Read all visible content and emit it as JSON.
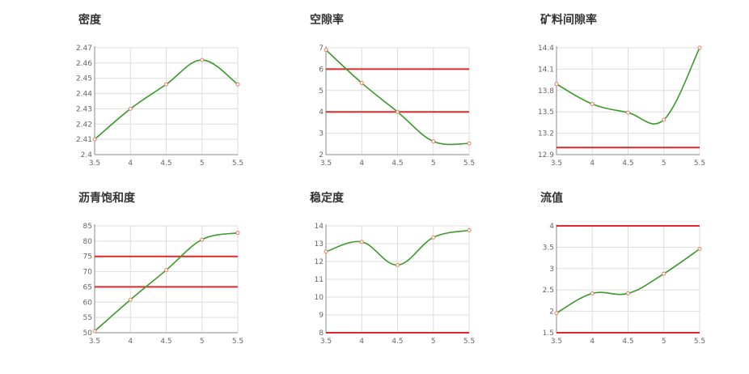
{
  "colors": {
    "curve": "#3a9a2a",
    "limit": "#e0292b",
    "grid": "#dddddd",
    "axis": "#888888",
    "marker_stroke": "#e08060"
  },
  "chart_data": [
    {
      "type": "line",
      "title": "密度",
      "x": [
        3.5,
        4,
        4.5,
        5,
        5.5
      ],
      "series": [
        {
          "values": [
            2.41,
            2.43,
            2.446,
            2.462,
            2.446
          ]
        }
      ],
      "xticks": [
        "3.5",
        "4",
        "4.5",
        "5",
        "5.5"
      ],
      "xlim": [
        3.5,
        5.5
      ],
      "ylim": [
        2.4,
        2.47
      ],
      "yticks": [
        "2.4",
        "2.41",
        "2.42",
        "2.43",
        "2.44",
        "2.45",
        "2.46",
        "2.47"
      ],
      "hlines": [],
      "grid": true
    },
    {
      "type": "line",
      "title": "空隙率",
      "x": [
        3.5,
        4,
        4.5,
        5,
        5.5
      ],
      "series": [
        {
          "values": [
            6.9,
            5.35,
            4.0,
            2.62,
            2.52
          ]
        }
      ],
      "xticks": [
        "3.5",
        "4",
        "4.5",
        "5",
        "5.5"
      ],
      "xlim": [
        3.5,
        5.5
      ],
      "ylim": [
        2,
        7
      ],
      "yticks": [
        "2",
        "3",
        "4",
        "5",
        "6",
        "7"
      ],
      "hlines": [
        4,
        6
      ],
      "grid": true
    },
    {
      "type": "line",
      "title": "矿料间隙率",
      "x": [
        3.5,
        4,
        4.5,
        5,
        5.5
      ],
      "series": [
        {
          "values": [
            13.89,
            13.61,
            13.49,
            13.39,
            14.4
          ]
        }
      ],
      "xticks": [
        "3.5",
        "4",
        "4.5",
        "5",
        "5.5"
      ],
      "xlim": [
        3.5,
        5.5
      ],
      "ylim": [
        12.9,
        14.4
      ],
      "yticks": [
        "12.9",
        "13.2",
        "13.5",
        "13.8",
        "14.1",
        "14.4"
      ],
      "hlines": [
        13
      ],
      "grid": true
    },
    {
      "type": "line",
      "title": "沥青饱和度",
      "x": [
        3.5,
        4,
        4.5,
        5,
        5.5
      ],
      "series": [
        {
          "values": [
            50.5,
            60.8,
            70.5,
            80.5,
            82.7
          ]
        }
      ],
      "xticks": [
        "3.5",
        "4",
        "4.5",
        "5",
        "5.5"
      ],
      "xlim": [
        3.5,
        5.5
      ],
      "ylim": [
        50,
        85
      ],
      "yticks": [
        "50",
        "55",
        "60",
        "65",
        "70",
        "75",
        "80",
        "85"
      ],
      "hlines": [
        65,
        75
      ],
      "grid": true
    },
    {
      "type": "line",
      "title": "稳定度",
      "x": [
        3.5,
        4,
        4.5,
        5,
        5.5
      ],
      "series": [
        {
          "values": [
            12.55,
            13.1,
            11.8,
            13.35,
            13.75
          ]
        }
      ],
      "xticks": [
        "3.5",
        "4",
        "4.5",
        "5",
        "5.5"
      ],
      "xlim": [
        3.5,
        5.5
      ],
      "ylim": [
        8,
        14
      ],
      "yticks": [
        "8",
        "9",
        "10",
        "11",
        "12",
        "13",
        "14"
      ],
      "hlines": [
        8
      ],
      "grid": true
    },
    {
      "type": "line",
      "title": "流值",
      "x": [
        3.5,
        4,
        4.5,
        5,
        5.5
      ],
      "series": [
        {
          "values": [
            1.96,
            2.42,
            2.42,
            2.88,
            3.46
          ]
        }
      ],
      "xticks": [
        "3.5",
        "4",
        "4.5",
        "5",
        "5.5"
      ],
      "xlim": [
        3.5,
        5.5
      ],
      "ylim": [
        1.5,
        4
      ],
      "yticks": [
        "1.5",
        "2",
        "2.5",
        "3",
        "3.5",
        "4"
      ],
      "hlines": [
        1.5,
        4
      ],
      "grid": true
    }
  ]
}
